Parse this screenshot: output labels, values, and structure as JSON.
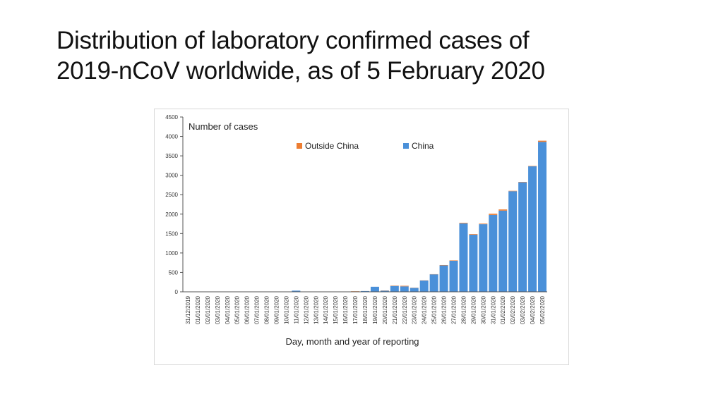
{
  "slide": {
    "title_line1": "Distribution of laboratory confirmed cases of",
    "title_line2": "2019-nCoV worldwide, as of 5 February 2020"
  },
  "colors": {
    "china": "#4a90d9",
    "outside_china": "#ed7d31",
    "axis": "#555555"
  },
  "chart_data": {
    "type": "bar",
    "stacked": true,
    "title": "",
    "ylabel": "Number of cases",
    "xlabel": "Day, month and year of reporting",
    "ylim": [
      0,
      4500
    ],
    "yticks": [
      0,
      500,
      1000,
      1500,
      2000,
      2500,
      3000,
      3500,
      4000,
      4500
    ],
    "legend_position": "top-right",
    "categories": [
      "31/12/2019",
      "01/01/2020",
      "02/01/2020",
      "03/01/2020",
      "04/01/2020",
      "05/01/2020",
      "06/01/2020",
      "07/01/2020",
      "08/01/2020",
      "09/01/2020",
      "10/01/2020",
      "11/01/2020",
      "12/01/2020",
      "13/01/2020",
      "14/01/2020",
      "15/01/2020",
      "16/01/2020",
      "17/01/2020",
      "18/01/2020",
      "19/01/2020",
      "20/01/2020",
      "21/01/2020",
      "22/01/2020",
      "23/01/2020",
      "24/01/2020",
      "25/01/2020",
      "26/01/2020",
      "27/01/2020",
      "28/01/2020",
      "29/01/2020",
      "30/01/2020",
      "31/01/2020",
      "01/02/2020",
      "02/02/2020",
      "03/02/2020",
      "04/02/2020",
      "05/02/2020"
    ],
    "series": [
      {
        "name": "China",
        "values": [
          0,
          0,
          0,
          0,
          0,
          0,
          0,
          0,
          0,
          0,
          0,
          30,
          0,
          0,
          0,
          0,
          0,
          10,
          20,
          130,
          30,
          150,
          140,
          100,
          290,
          450,
          680,
          800,
          1760,
          1470,
          1740,
          1980,
          2090,
          2590,
          2820,
          3230,
          3860
        ]
      },
      {
        "name": "Outside China",
        "values": [
          0,
          0,
          0,
          0,
          0,
          0,
          0,
          0,
          0,
          0,
          0,
          0,
          0,
          0,
          0,
          0,
          0,
          5,
          0,
          0,
          5,
          10,
          15,
          5,
          5,
          5,
          10,
          10,
          15,
          15,
          15,
          30,
          30,
          10,
          10,
          10,
          30
        ]
      }
    ]
  }
}
